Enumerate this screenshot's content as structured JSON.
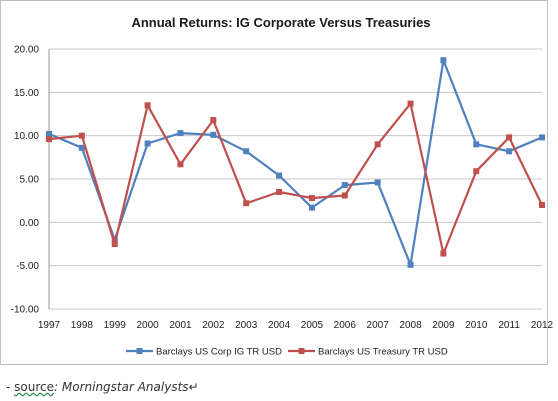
{
  "chart_data": {
    "type": "line",
    "title": "Annual Returns: IG Corporate Versus Treasuries",
    "xlabel": "",
    "ylabel": "",
    "categories": [
      "1997",
      "1998",
      "1999",
      "2000",
      "2001",
      "2002",
      "2003",
      "2004",
      "2005",
      "2006",
      "2007",
      "2008",
      "2009",
      "2010",
      "2011",
      "2012"
    ],
    "ylim": [
      -10,
      20
    ],
    "yticks": [
      "20.00",
      "15.00",
      "10.00",
      "5.00",
      "0.00",
      "-5.00",
      "-10.00"
    ],
    "ytick_values": [
      20,
      15,
      10,
      5,
      0,
      -5,
      -10
    ],
    "grid": "horizontal",
    "legend_position": "bottom",
    "series": [
      {
        "name": "Barclays US Corp IG TR USD",
        "color": "#4f81bd",
        "values": [
          10.2,
          8.6,
          -2.0,
          9.1,
          10.3,
          10.1,
          8.2,
          5.4,
          1.7,
          4.3,
          4.6,
          -4.9,
          18.7,
          9.0,
          8.2,
          9.8
        ]
      },
      {
        "name": "Barclays US Treasury TR USD",
        "color": "#c0504d",
        "values": [
          9.6,
          10.0,
          -2.5,
          13.5,
          6.7,
          11.8,
          2.2,
          3.5,
          2.8,
          3.1,
          9.0,
          13.7,
          -3.6,
          5.9,
          9.8,
          2.0
        ]
      }
    ]
  },
  "source_note": {
    "prefix": "- ",
    "word": "source",
    "rest": ": Morningstar Analysts",
    "mark": "↵"
  }
}
